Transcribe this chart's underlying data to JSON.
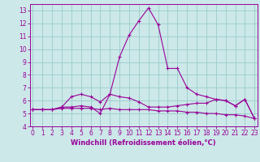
{
  "xlabel": "Windchill (Refroidissement éolien,°C)",
  "x": [
    0,
    1,
    2,
    3,
    4,
    5,
    6,
    7,
    8,
    9,
    10,
    11,
    12,
    13,
    14,
    15,
    16,
    17,
    18,
    19,
    20,
    21,
    22,
    23
  ],
  "line1": [
    5.3,
    5.3,
    5.3,
    5.5,
    6.3,
    6.5,
    6.3,
    5.9,
    6.5,
    6.3,
    6.2,
    5.9,
    5.5,
    5.5,
    5.5,
    5.6,
    5.7,
    5.8,
    5.8,
    6.1,
    6.0,
    5.6,
    6.1,
    4.6
  ],
  "line2": [
    5.3,
    5.3,
    5.3,
    5.5,
    5.5,
    5.6,
    5.5,
    5.0,
    6.5,
    9.4,
    11.1,
    12.2,
    13.2,
    11.9,
    8.5,
    8.5,
    7.0,
    6.5,
    6.3,
    6.1,
    6.0,
    5.6,
    6.1,
    4.6
  ],
  "line3": [
    5.3,
    5.3,
    5.3,
    5.4,
    5.4,
    5.4,
    5.4,
    5.3,
    5.4,
    5.3,
    5.3,
    5.3,
    5.3,
    5.2,
    5.2,
    5.2,
    5.1,
    5.1,
    5.0,
    5.0,
    4.9,
    4.9,
    4.8,
    4.6
  ],
  "line_color": "#990099",
  "bg_color": "#cce8e8",
  "grid_color": "#99cccc",
  "ylim": [
    4,
    13.5
  ],
  "xlim": [
    -0.3,
    23.3
  ],
  "yticks": [
    4,
    5,
    6,
    7,
    8,
    9,
    10,
    11,
    12,
    13
  ],
  "xticks": [
    0,
    1,
    2,
    3,
    4,
    5,
    6,
    7,
    8,
    9,
    10,
    11,
    12,
    13,
    14,
    15,
    16,
    17,
    18,
    19,
    20,
    21,
    22,
    23
  ],
  "tick_fontsize": 5.5,
  "xlabel_fontsize": 6.0,
  "marker_size": 2.0,
  "line_width": 0.8
}
